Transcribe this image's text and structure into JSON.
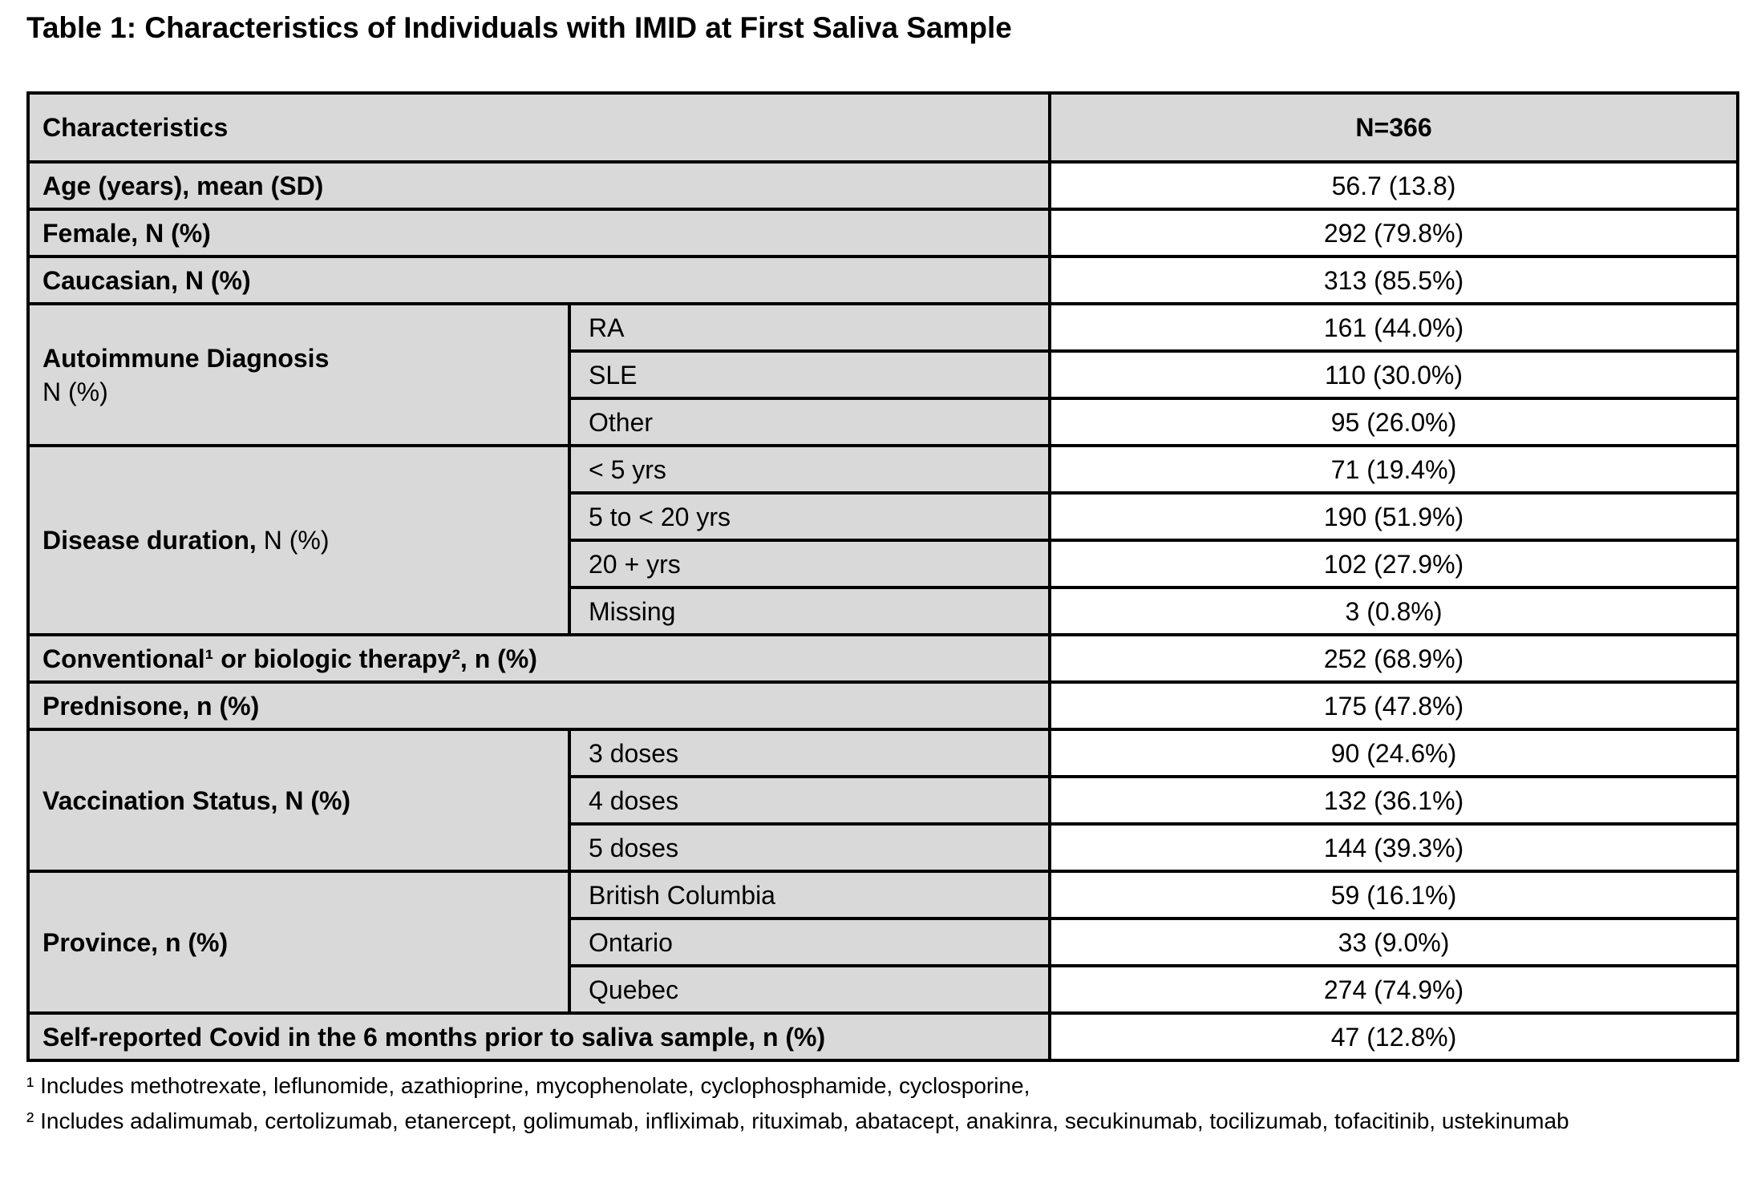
{
  "title": "Table 1: Characteristics of Individuals with IMID at First Saliva Sample",
  "colors": {
    "shaded_cell_fill": "#d9d9d9",
    "value_cell_fill": "#ffffff",
    "border": "#000000",
    "text": "#000000"
  },
  "table": {
    "header": {
      "characteristics_label": "Characteristics",
      "n_label": "N=366"
    },
    "rows": [
      {
        "label": "Age (years), mean (SD)",
        "value": "56.7 (13.8)"
      },
      {
        "label": "Female, N (%)",
        "value": "292 (79.8%)"
      },
      {
        "label": "Caucasian, N (%)",
        "value": "313 (85.5%)"
      },
      {
        "label_bold": "Autoimmune Diagnosis",
        "label_regular": "N (%)",
        "items": [
          {
            "label": "RA",
            "value": "161 (44.0%)"
          },
          {
            "label": "SLE",
            "value": "110 (30.0%)"
          },
          {
            "label": "Other",
            "value": "95 (26.0%)"
          }
        ]
      },
      {
        "label_bold": "Disease duration,",
        "label_regular": "N (%)",
        "items": [
          {
            "label": "< 5 yrs",
            "value": "71 (19.4%)"
          },
          {
            "label": "5 to < 20 yrs",
            "value": "190 (51.9%)"
          },
          {
            "label": "20 + yrs",
            "value": "102 (27.9%)"
          },
          {
            "label": "Missing",
            "value": "3 (0.8%)"
          }
        ]
      },
      {
        "label": "Conventional¹ or biologic therapy², n (%)",
        "value": "252 (68.9%)"
      },
      {
        "label": "Prednisone, n (%)",
        "value": "175 (47.8%)"
      },
      {
        "label_bold": "Vaccination Status, N (%)",
        "items": [
          {
            "label": "3 doses",
            "value": "90 (24.6%)"
          },
          {
            "label": "4 doses",
            "value": "132 (36.1%)"
          },
          {
            "label": "5 doses",
            "value": "144 (39.3%)"
          }
        ]
      },
      {
        "label_bold": "Province, n (%)",
        "items": [
          {
            "label": "British Columbia",
            "value": "59 (16.1%)"
          },
          {
            "label": "Ontario",
            "value": "33 (9.0%)"
          },
          {
            "label": "Quebec",
            "value": "274 (74.9%)"
          }
        ]
      },
      {
        "label": "Self-reported Covid in the 6 months prior to saliva sample, n (%)",
        "value": "47 (12.8%)"
      }
    ]
  },
  "footnotes": [
    "¹ Includes methotrexate, leflunomide, azathioprine, mycophenolate, cyclophosphamide, cyclosporine,",
    "² Includes adalimumab, certolizumab, etanercept, golimumab, infliximab, rituximab, abatacept, anakinra, secukinumab, tocilizumab, tofacitinib, ustekinumab"
  ]
}
